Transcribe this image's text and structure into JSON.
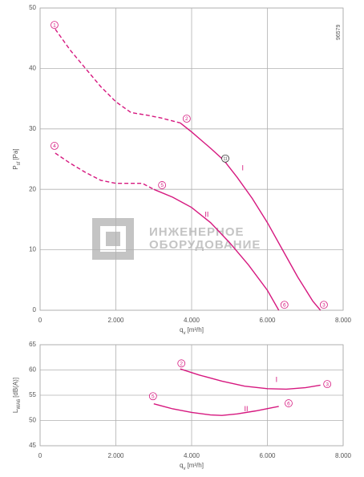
{
  "watermark": [
    "ИНЖЕНЕРНОЕ",
    "ОБОРУДОВАНИЕ"
  ],
  "chart_data": [
    {
      "type": "line",
      "code": "96579",
      "xlabel": [
        "q",
        "v",
        "[m³/h]"
      ],
      "ylabel": [
        "P",
        "sf",
        "[Pa]"
      ],
      "xlim": [
        0,
        8000
      ],
      "xticks": [
        0,
        {
          "value": 2000,
          "label": "2.000"
        },
        {
          "value": 4000,
          "label": "4.000"
        },
        {
          "value": 6000,
          "label": "6.000"
        },
        {
          "value": 8000,
          "label": "8.000"
        }
      ],
      "ylim": [
        0,
        50
      ],
      "yticks": [
        0,
        10,
        20,
        30,
        40,
        50
      ],
      "grid": true,
      "series": [
        {
          "style": "dashed",
          "color": "#d6187f",
          "x": [
            400,
            800,
            1200,
            1600,
            2000,
            2400,
            2800,
            3200,
            3700
          ],
          "values": [
            46.5,
            43,
            40,
            37,
            34.5,
            32.7,
            32.3,
            31.8,
            31
          ]
        },
        {
          "style": "solid",
          "color": "#d6187f",
          "x": [
            3700,
            4000,
            4500,
            4850,
            5200,
            5600,
            6000,
            6400,
            6800,
            7200,
            7400
          ],
          "values": [
            31,
            29.5,
            26.8,
            24.8,
            22,
            18.5,
            14.5,
            10,
            5.5,
            1.5,
            0
          ]
        },
        {
          "style": "dashed",
          "color": "#d6187f",
          "x": [
            400,
            800,
            1200,
            1600,
            2000,
            2400,
            2700,
            3000
          ],
          "values": [
            26,
            24.3,
            22.8,
            21.5,
            21,
            21,
            21,
            20
          ]
        },
        {
          "style": "solid",
          "color": "#d6187f",
          "x": [
            3000,
            3500,
            4000,
            4500,
            5000,
            5500,
            6000,
            6300
          ],
          "values": [
            20,
            18.7,
            17,
            14.5,
            11.2,
            7.5,
            3.3,
            0
          ]
        }
      ],
      "annotations": [
        {
          "text": "1",
          "x": 380,
          "y": 47.2,
          "marker": "circle",
          "color": "#d6187f"
        },
        {
          "text": "2",
          "x": 3870,
          "y": 31.7,
          "marker": "circle",
          "color": "#d6187f"
        },
        {
          "text": "3",
          "x": 7490,
          "y": 0.9,
          "marker": "circle",
          "color": "#d6187f"
        },
        {
          "text": "4",
          "x": 380,
          "y": 27.2,
          "marker": "circle",
          "color": "#d6187f"
        },
        {
          "text": "5",
          "x": 3220,
          "y": 20.7,
          "marker": "circle",
          "color": "#d6187f"
        },
        {
          "text": "6",
          "x": 6450,
          "y": 0.9,
          "marker": "circle",
          "color": "#d6187f"
        },
        {
          "text": "11",
          "x": 4890,
          "y": 25.1,
          "marker": "circle",
          "color": "#333333"
        },
        {
          "text": "I",
          "x": 5350,
          "y": 23.5,
          "color": "#d6187f"
        },
        {
          "text": "II",
          "x": 4400,
          "y": 15.8,
          "color": "#d6187f"
        }
      ]
    },
    {
      "type": "line",
      "xlabel": [
        "q",
        "v",
        "[m³/h]"
      ],
      "ylabel": [
        "L",
        "WA6",
        "[dB(A)]"
      ],
      "xlim": [
        0,
        8000
      ],
      "xticks": [
        0,
        {
          "value": 2000,
          "label": "2.000"
        },
        {
          "value": 4000,
          "label": "4.000"
        },
        {
          "value": 6000,
          "label": "6.000"
        },
        {
          "value": 8000,
          "label": "8.000"
        }
      ],
      "ylim": [
        45,
        65
      ],
      "yticks": [
        45,
        50,
        55,
        60,
        65
      ],
      "grid": true,
      "series": [
        {
          "style": "solid",
          "color": "#d6187f",
          "x": [
            3700,
            4200,
            4800,
            5400,
            6000,
            6500,
            7000,
            7400
          ],
          "values": [
            60.2,
            59,
            57.8,
            56.8,
            56.3,
            56.2,
            56.5,
            57
          ]
        },
        {
          "style": "solid",
          "color": "#d6187f",
          "x": [
            3000,
            3500,
            4000,
            4500,
            4800,
            5200,
            5700,
            6300
          ],
          "values": [
            53.3,
            52.3,
            51.6,
            51.1,
            51,
            51.3,
            51.9,
            52.8
          ]
        }
      ],
      "annotations": [
        {
          "text": "2",
          "x": 3730,
          "y": 61.3,
          "marker": "circle",
          "color": "#d6187f"
        },
        {
          "text": "3",
          "x": 7580,
          "y": 57.2,
          "marker": "circle",
          "color": "#d6187f"
        },
        {
          "text": "5",
          "x": 2980,
          "y": 54.8,
          "marker": "circle",
          "color": "#d6187f"
        },
        {
          "text": "6",
          "x": 6560,
          "y": 53.4,
          "marker": "circle",
          "color": "#d6187f"
        },
        {
          "text": "I",
          "x": 6240,
          "y": 58.1,
          "color": "#d6187f"
        },
        {
          "text": "II",
          "x": 5440,
          "y": 52.3,
          "color": "#d6187f"
        }
      ]
    }
  ]
}
